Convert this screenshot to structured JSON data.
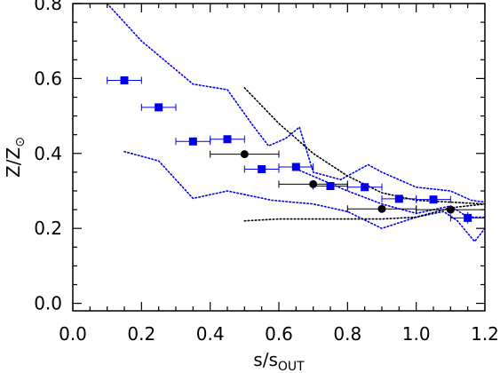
{
  "chart_data": {
    "type": "scatter",
    "xlabel": "s/s",
    "xlabel_sub": "OUT",
    "ylabel": "Z/Z",
    "ylabel_sub": "⊙",
    "xlim": [
      0.0,
      1.2
    ],
    "ylim": [
      -0.02,
      0.8
    ],
    "x_ticks": [
      0.0,
      0.2,
      0.4,
      0.6,
      0.8,
      1.0,
      1.2
    ],
    "x_tick_labels": [
      "0.0",
      "0.2",
      "0.4",
      "0.6",
      "0.8",
      "1.0",
      "1.2"
    ],
    "y_ticks": [
      0.0,
      0.2,
      0.4,
      0.6,
      0.8
    ],
    "y_tick_labels": [
      "0.0",
      "0.2",
      "0.4",
      "0.6",
      "0.8"
    ],
    "grid": false,
    "colors": {
      "blue": "#0000ee",
      "black": "#000000"
    },
    "series": [
      {
        "marker": "square",
        "color": "#0000ee",
        "points": [
          {
            "x": 0.15,
            "y": 0.595,
            "xerr": 0.05,
            "yerr": 0.01
          },
          {
            "x": 0.25,
            "y": 0.523,
            "xerr": 0.05,
            "yerr": 0.01
          },
          {
            "x": 0.35,
            "y": 0.432,
            "xerr": 0.05,
            "yerr": 0.01
          },
          {
            "x": 0.45,
            "y": 0.438,
            "xerr": 0.05,
            "yerr": 0.01
          },
          {
            "x": 0.55,
            "y": 0.358,
            "xerr": 0.05,
            "yerr": 0.01
          },
          {
            "x": 0.65,
            "y": 0.364,
            "xerr": 0.05,
            "yerr": 0.01
          },
          {
            "x": 0.75,
            "y": 0.313,
            "xerr": 0.05,
            "yerr": 0.01
          },
          {
            "x": 0.85,
            "y": 0.31,
            "xerr": 0.05,
            "yerr": 0.01
          },
          {
            "x": 0.95,
            "y": 0.279,
            "xerr": 0.05,
            "yerr": 0.01
          },
          {
            "x": 1.05,
            "y": 0.277,
            "xerr": 0.05,
            "yerr": 0.01
          },
          {
            "x": 1.15,
            "y": 0.228,
            "xerr": 0.05,
            "yerr": 0.015
          }
        ]
      },
      {
        "marker": "circle",
        "color": "#000000",
        "points": [
          {
            "x": 0.5,
            "y": 0.398,
            "xerr": 0.1,
            "yerr": 0.01
          },
          {
            "x": 0.7,
            "y": 0.318,
            "xerr": 0.1,
            "yerr": 0.01
          },
          {
            "x": 0.9,
            "y": 0.252,
            "xerr": 0.1,
            "yerr": 0.01
          },
          {
            "x": 1.1,
            "y": 0.25,
            "xerr": 0.1,
            "yerr": 0.01
          }
        ]
      }
    ],
    "envelopes": [
      {
        "color": "#0000ee",
        "lines": [
          [
            [
              0.1,
              0.8
            ],
            [
              0.2,
              0.7
            ],
            [
              0.35,
              0.585
            ],
            [
              0.45,
              0.57
            ],
            [
              0.52,
              0.48
            ],
            [
              0.57,
              0.42
            ],
            [
              0.62,
              0.44
            ],
            [
              0.66,
              0.47
            ],
            [
              0.7,
              0.35
            ],
            [
              0.78,
              0.33
            ],
            [
              0.86,
              0.37
            ],
            [
              0.9,
              0.35
            ],
            [
              1.0,
              0.31
            ],
            [
              1.1,
              0.3
            ],
            [
              1.16,
              0.275
            ],
            [
              1.2,
              0.27
            ]
          ],
          [
            [
              0.15,
              0.405
            ],
            [
              0.25,
              0.38
            ],
            [
              0.35,
              0.28
            ],
            [
              0.45,
              0.3
            ],
            [
              0.58,
              0.275
            ],
            [
              0.7,
              0.265
            ],
            [
              0.8,
              0.245
            ],
            [
              0.9,
              0.2
            ],
            [
              1.0,
              0.23
            ],
            [
              1.08,
              0.245
            ],
            [
              1.12,
              0.22
            ],
            [
              1.17,
              0.165
            ],
            [
              1.2,
              0.2
            ]
          ],
          [
            [
              0.66,
              0.355
            ],
            [
              0.8,
              0.3
            ],
            [
              0.9,
              0.265
            ],
            [
              1.0,
              0.24
            ],
            [
              1.1,
              0.26
            ],
            [
              1.15,
              0.23
            ],
            [
              1.2,
              0.23
            ]
          ]
        ]
      },
      {
        "color": "#000000",
        "lines": [
          [
            [
              0.5,
              0.575
            ],
            [
              0.6,
              0.48
            ],
            [
              0.7,
              0.4
            ],
            [
              0.8,
              0.34
            ],
            [
              0.9,
              0.295
            ],
            [
              1.0,
              0.275
            ],
            [
              1.1,
              0.27
            ],
            [
              1.2,
              0.265
            ]
          ],
          [
            [
              0.5,
              0.22
            ],
            [
              0.6,
              0.225
            ],
            [
              0.7,
              0.225
            ],
            [
              0.8,
              0.225
            ],
            [
              0.9,
              0.225
            ],
            [
              1.0,
              0.23
            ],
            [
              1.1,
              0.255
            ],
            [
              1.2,
              0.265
            ]
          ]
        ]
      }
    ]
  }
}
